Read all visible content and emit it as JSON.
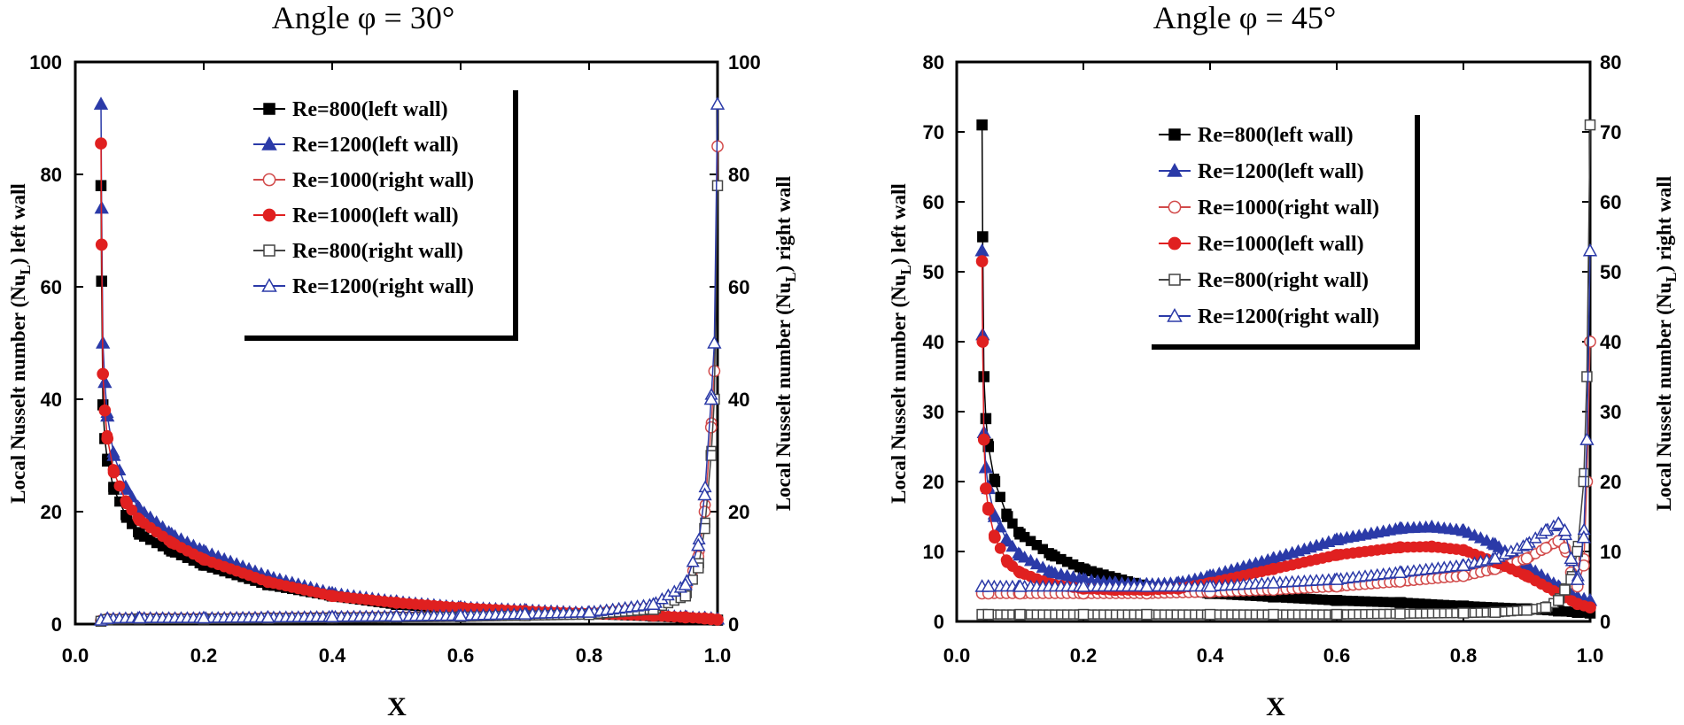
{
  "chart_data": [
    {
      "type": "line",
      "title": "Angle φ = 30°",
      "xlabel": "X",
      "ylabel_left": "Local Nusselt number (NuL) left wall",
      "ylabel_right": "Local Nusselt number (NuL) right wall",
      "xlim": [
        0.0,
        1.0
      ],
      "ylim": [
        0,
        100
      ],
      "xticks": [
        "0.0",
        "0.2",
        "0.4",
        "0.6",
        "0.8",
        "1.0"
      ],
      "yticks": [
        "0",
        "20",
        "40",
        "60",
        "80",
        "100"
      ],
      "legend_position": "top-right",
      "series": [
        {
          "name": "Re=800(left wall)",
          "color": "#000000",
          "marker": "square",
          "filled": true,
          "x": [
            0.04,
            0.041,
            0.043,
            0.046,
            0.05,
            0.06,
            0.08,
            0.1,
            0.15,
            0.2,
            0.3,
            0.4,
            0.5,
            0.6,
            0.7,
            0.8,
            0.9,
            0.95,
            0.98,
            0.99,
            1.0
          ],
          "y": [
            78,
            61,
            39,
            33,
            29,
            24,
            19,
            16,
            13,
            10.5,
            7,
            5,
            3.5,
            2.7,
            2.2,
            1.8,
            1.4,
            1.1,
            0.9,
            0.8,
            0.7
          ]
        },
        {
          "name": "Re=1200(left wall)",
          "color": "#2b3aa8",
          "marker": "triangle",
          "filled": true,
          "x": [
            0.04,
            0.041,
            0.043,
            0.046,
            0.05,
            0.06,
            0.08,
            0.1,
            0.15,
            0.2,
            0.3,
            0.4,
            0.5,
            0.6,
            0.7,
            0.8,
            0.9,
            0.95,
            0.98,
            0.99,
            1.0
          ],
          "y": [
            92.5,
            74,
            50,
            43,
            37,
            30,
            24,
            20.5,
            16,
            13,
            8.5,
            5.5,
            4,
            3,
            2.5,
            2,
            1.6,
            1.3,
            1.1,
            1,
            0.9
          ]
        },
        {
          "name": "Re=1000(right wall)",
          "color": "#d24b4b",
          "marker": "circle",
          "filled": false,
          "x": [
            0.04,
            0.05,
            0.1,
            0.2,
            0.3,
            0.4,
            0.5,
            0.6,
            0.7,
            0.8,
            0.9,
            0.95,
            0.97,
            0.98,
            0.99,
            0.995,
            1.0
          ],
          "y": [
            0.6,
            0.9,
            1,
            1,
            1.1,
            1.2,
            1.3,
            1.4,
            1.6,
            1.9,
            3,
            6,
            12,
            20,
            35,
            45,
            85
          ]
        },
        {
          "name": "Re=1000(left wall)",
          "color": "#e02020",
          "marker": "circle",
          "filled": true,
          "x": [
            0.04,
            0.041,
            0.043,
            0.046,
            0.05,
            0.06,
            0.08,
            0.1,
            0.15,
            0.2,
            0.3,
            0.4,
            0.5,
            0.6,
            0.7,
            0.8,
            0.9,
            0.95,
            0.98,
            0.99,
            1.0
          ],
          "y": [
            85.5,
            67.5,
            44.5,
            38,
            33,
            27,
            21.5,
            18.5,
            14.5,
            11.5,
            7.5,
            5,
            3.8,
            2.9,
            2.3,
            1.9,
            1.5,
            1.2,
            1,
            0.9,
            0.8
          ]
        },
        {
          "name": "Re=800(right wall)",
          "color": "#444444",
          "marker": "square",
          "filled": false,
          "x": [
            0.04,
            0.05,
            0.1,
            0.2,
            0.3,
            0.4,
            0.5,
            0.6,
            0.7,
            0.8,
            0.9,
            0.95,
            0.97,
            0.98,
            0.99,
            0.995,
            1.0
          ],
          "y": [
            0.5,
            0.8,
            0.9,
            0.9,
            1,
            1.1,
            1.2,
            1.3,
            1.5,
            1.7,
            2.6,
            5,
            10,
            17,
            30,
            40,
            78
          ]
        },
        {
          "name": "Re=1200(right wall)",
          "color": "#2b3aa8",
          "marker": "triangle",
          "filled": false,
          "x": [
            0.04,
            0.05,
            0.1,
            0.2,
            0.3,
            0.4,
            0.5,
            0.6,
            0.7,
            0.8,
            0.9,
            0.95,
            0.97,
            0.98,
            0.99,
            0.995,
            1.0
          ],
          "y": [
            0.7,
            1,
            1.1,
            1.1,
            1.2,
            1.3,
            1.4,
            1.5,
            1.8,
            2.1,
            3.5,
            7,
            14,
            23,
            40,
            50,
            92.5
          ]
        }
      ]
    },
    {
      "type": "line",
      "title": "Angle φ = 45°",
      "xlabel": "X",
      "ylabel_left": "Local Nusselt number (NuL) left wall",
      "ylabel_right": "Local Nusselt number (NuL) right wall",
      "xlim": [
        0.0,
        1.0
      ],
      "ylim": [
        0,
        80
      ],
      "xticks": [
        "0.0",
        "0.2",
        "0.4",
        "0.6",
        "0.8",
        "1.0"
      ],
      "yticks": [
        "0",
        "10",
        "20",
        "30",
        "40",
        "50",
        "60",
        "70",
        "80"
      ],
      "legend_position": "top-center",
      "series": [
        {
          "name": "Re=800(left wall)",
          "color": "#000000",
          "marker": "square",
          "filled": true,
          "x": [
            0.04,
            0.041,
            0.043,
            0.046,
            0.05,
            0.06,
            0.08,
            0.1,
            0.15,
            0.2,
            0.3,
            0.4,
            0.5,
            0.6,
            0.7,
            0.8,
            0.9,
            0.95,
            0.98,
            1.0
          ],
          "y": [
            71,
            55,
            35,
            29,
            25,
            20,
            15,
            12.5,
            9.5,
            7.5,
            5,
            4,
            3.5,
            3,
            2.7,
            2.2,
            1.8,
            1.5,
            1.3,
            1.2
          ]
        },
        {
          "name": "Re=1200(left wall)",
          "color": "#2b3aa8",
          "marker": "triangle",
          "filled": true,
          "x": [
            0.04,
            0.041,
            0.043,
            0.046,
            0.05,
            0.06,
            0.08,
            0.1,
            0.15,
            0.2,
            0.25,
            0.3,
            0.35,
            0.4,
            0.5,
            0.6,
            0.7,
            0.75,
            0.8,
            0.85,
            0.9,
            0.95,
            0.98,
            1.0
          ],
          "y": [
            53,
            41,
            27,
            22,
            19,
            15,
            11.5,
            9.5,
            7,
            6,
            5.5,
            5.3,
            5.5,
            6.5,
            9,
            11.7,
            13.3,
            13.5,
            13,
            11,
            8,
            5,
            3.5,
            3
          ]
        },
        {
          "name": "Re=1000(right wall)",
          "color": "#d24b4b",
          "marker": "circle",
          "filled": false,
          "x": [
            0.04,
            0.05,
            0.1,
            0.2,
            0.3,
            0.4,
            0.5,
            0.6,
            0.7,
            0.8,
            0.85,
            0.9,
            0.93,
            0.95,
            0.96,
            0.97,
            0.98,
            0.99,
            0.995,
            1.0
          ],
          "y": [
            4,
            4,
            4,
            4,
            4,
            4.2,
            4.5,
            5,
            5.7,
            6.5,
            7.5,
            9,
            10.5,
            11.5,
            10.5,
            7,
            5,
            8,
            20,
            40
          ]
        },
        {
          "name": "Re=1000(left wall)",
          "color": "#e02020",
          "marker": "circle",
          "filled": true,
          "x": [
            0.04,
            0.041,
            0.043,
            0.046,
            0.05,
            0.06,
            0.08,
            0.1,
            0.15,
            0.2,
            0.25,
            0.3,
            0.35,
            0.4,
            0.5,
            0.6,
            0.7,
            0.75,
            0.8,
            0.85,
            0.9,
            0.95,
            0.98,
            1.0
          ],
          "y": [
            51.5,
            40,
            26,
            19,
            16,
            12,
            8.5,
            7,
            5.3,
            4.7,
            4.5,
            4.5,
            4.7,
            5.5,
            7.5,
            9.5,
            10.6,
            10.7,
            10.2,
            8.5,
            6.5,
            4,
            2.5,
            2
          ]
        },
        {
          "name": "Re=800(right wall)",
          "color": "#444444",
          "marker": "square",
          "filled": false,
          "x": [
            0.04,
            0.05,
            0.1,
            0.2,
            0.3,
            0.4,
            0.5,
            0.6,
            0.7,
            0.8,
            0.85,
            0.9,
            0.93,
            0.95,
            0.96,
            0.97,
            0.98,
            0.99,
            0.995,
            1.0
          ],
          "y": [
            1,
            1,
            1,
            1,
            1,
            1,
            1,
            1,
            1.1,
            1.2,
            1.3,
            1.6,
            2,
            3,
            4.5,
            6,
            10,
            20,
            35,
            71
          ]
        },
        {
          "name": "Re=1200(right wall)",
          "color": "#2b3aa8",
          "marker": "triangle",
          "filled": false,
          "x": [
            0.04,
            0.05,
            0.1,
            0.2,
            0.3,
            0.4,
            0.5,
            0.6,
            0.7,
            0.8,
            0.85,
            0.9,
            0.93,
            0.95,
            0.96,
            0.97,
            0.98,
            0.99,
            0.995,
            1.0
          ],
          "y": [
            5,
            5,
            5,
            5,
            5,
            5,
            5.5,
            6,
            7,
            8,
            9,
            11,
            13,
            14,
            13,
            9,
            6,
            12,
            26,
            53
          ]
        }
      ]
    }
  ]
}
